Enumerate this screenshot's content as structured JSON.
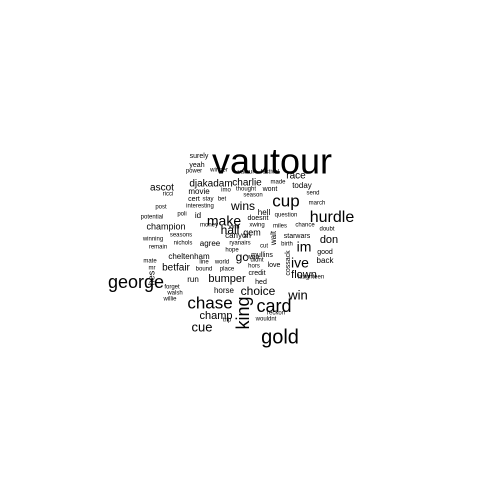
{
  "words": [
    {
      "text": "vautour",
      "size": 36
    },
    {
      "text": "gold",
      "size": 20
    },
    {
      "text": "george",
      "size": 18
    },
    {
      "text": "card",
      "size": 18
    },
    {
      "text": "chase",
      "size": 17
    },
    {
      "text": "king",
      "size": 18,
      "vertical": true
    },
    {
      "text": "cup",
      "size": 17
    },
    {
      "text": "hurdle",
      "size": 16
    },
    {
      "text": "make",
      "size": 14
    },
    {
      "text": "ive",
      "size": 14
    },
    {
      "text": "im",
      "size": 14
    },
    {
      "text": "cue",
      "size": 13
    },
    {
      "text": "win",
      "size": 13
    },
    {
      "text": "choice",
      "size": 12
    },
    {
      "text": "hall",
      "size": 12
    },
    {
      "text": "wins",
      "size": 12
    },
    {
      "text": "gc",
      "size": 12
    },
    {
      "text": "champ",
      "size": 11
    },
    {
      "text": "bumper",
      "size": 11
    },
    {
      "text": "don",
      "size": 11
    },
    {
      "text": "flown",
      "size": 11
    },
    {
      "text": "djakadam",
      "size": 10
    },
    {
      "text": "ascot",
      "size": 10
    },
    {
      "text": "charlie",
      "size": 10
    },
    {
      "text": "race",
      "size": 10
    },
    {
      "text": "betfair",
      "size": 10
    },
    {
      "text": "champion",
      "size": 9
    },
    {
      "text": "gem",
      "size": 9
    },
    {
      "text": "today",
      "size": 8
    },
    {
      "text": "movie",
      "size": 8
    },
    {
      "text": "cheltenham",
      "size": 8
    },
    {
      "text": "agree",
      "size": 8
    },
    {
      "text": "horse",
      "size": 8
    },
    {
      "text": "canyon",
      "size": 8
    },
    {
      "text": "hell",
      "size": 8
    },
    {
      "text": "run",
      "size": 8
    },
    {
      "text": "back",
      "size": 8
    },
    {
      "text": "good",
      "size": 7
    },
    {
      "text": "id",
      "size": 8
    },
    {
      "text": "walt",
      "size": 8,
      "vertical": true
    },
    {
      "text": "hes",
      "size": 9,
      "vertical": true
    },
    {
      "text": "mullins",
      "size": 7
    },
    {
      "text": "wont",
      "size": 7
    },
    {
      "text": "surely",
      "size": 7
    },
    {
      "text": "yeah",
      "size": 7
    },
    {
      "text": "power",
      "size": 6
    },
    {
      "text": "winner",
      "size": 6
    },
    {
      "text": "vatour",
      "size": 6
    },
    {
      "text": "festival",
      "size": 6
    },
    {
      "text": "made",
      "size": 6
    },
    {
      "text": "ricci",
      "size": 6
    },
    {
      "text": "imo",
      "size": 6
    },
    {
      "text": "thought",
      "size": 6
    },
    {
      "text": "send",
      "size": 6
    },
    {
      "text": "cert",
      "size": 7
    },
    {
      "text": "stay",
      "size": 6
    },
    {
      "text": "bet",
      "size": 6
    },
    {
      "text": "season",
      "size": 6
    },
    {
      "text": "post",
      "size": 6
    },
    {
      "text": "interesting",
      "size": 6
    },
    {
      "text": "march",
      "size": 6
    },
    {
      "text": "poli",
      "size": 6
    },
    {
      "text": "doesnt",
      "size": 7
    },
    {
      "text": "question",
      "size": 6
    },
    {
      "text": "potential",
      "size": 6
    },
    {
      "text": "money",
      "size": 6
    },
    {
      "text": "vvm",
      "size": 6
    },
    {
      "text": "xwing",
      "size": 6
    },
    {
      "text": "miles",
      "size": 6
    },
    {
      "text": "chance",
      "size": 6
    },
    {
      "text": "doubt",
      "size": 6
    },
    {
      "text": "seasons",
      "size": 6
    },
    {
      "text": "winning",
      "size": 6
    },
    {
      "text": "nichols",
      "size": 6
    },
    {
      "text": "ryanairs",
      "size": 6
    },
    {
      "text": "starwars",
      "size": 7
    },
    {
      "text": "remain",
      "size": 6
    },
    {
      "text": "cut",
      "size": 6
    },
    {
      "text": "birth",
      "size": 6
    },
    {
      "text": "hope",
      "size": 6
    },
    {
      "text": "won",
      "size": 7
    },
    {
      "text": "mate",
      "size": 6
    },
    {
      "text": "line",
      "size": 6
    },
    {
      "text": "world",
      "size": 6
    },
    {
      "text": "hors",
      "size": 6
    },
    {
      "text": "mr",
      "size": 6
    },
    {
      "text": "bound",
      "size": 6
    },
    {
      "text": "place",
      "size": 6
    },
    {
      "text": "love",
      "size": 7
    },
    {
      "text": "didnt",
      "size": 6
    },
    {
      "text": "credit",
      "size": 7
    },
    {
      "text": "laughteen",
      "size": 6
    },
    {
      "text": "cossack",
      "size": 7,
      "vertical": true
    },
    {
      "text": "hed",
      "size": 7
    },
    {
      "text": "forget",
      "size": 6
    },
    {
      "text": "walsh",
      "size": 6
    },
    {
      "text": "trip",
      "size": 6
    },
    {
      "text": "reckon",
      "size": 6
    },
    {
      "text": "willie",
      "size": 6
    },
    {
      "text": "wouldnt",
      "size": 6
    }
  ]
}
